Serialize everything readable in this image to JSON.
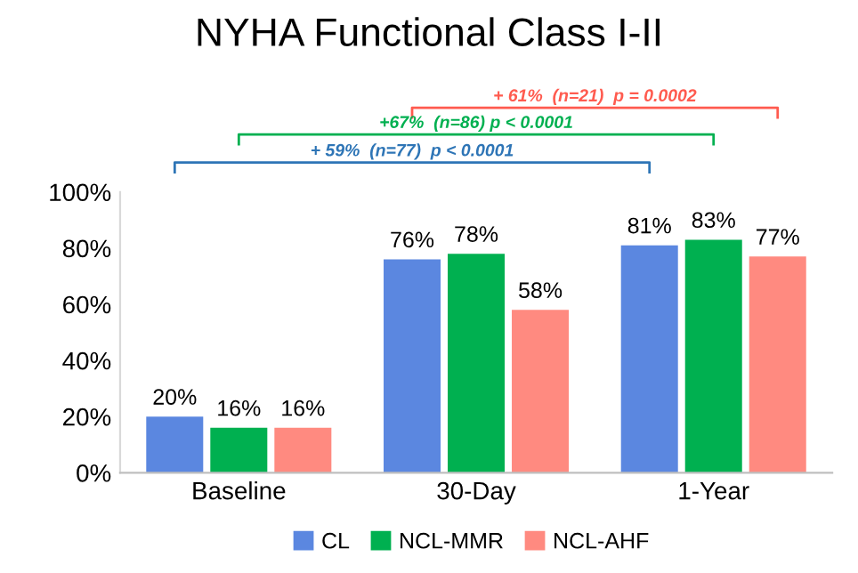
{
  "chart_data": {
    "type": "bar",
    "title": "NYHA Functional Class I-II",
    "categories": [
      "Baseline",
      "30-Day",
      "1-Year"
    ],
    "series": [
      {
        "name": "CL",
        "color": "#5b87e0",
        "values": [
          20,
          76,
          81
        ]
      },
      {
        "name": "NCL-MMR",
        "color": "#00b050",
        "values": [
          16,
          78,
          83
        ]
      },
      {
        "name": "NCL-AHF",
        "color": "#ff8a80",
        "values": [
          16,
          58,
          77
        ]
      }
    ],
    "ylim": [
      0,
      100
    ],
    "yticks": [
      {
        "value": 0,
        "label": "0%"
      },
      {
        "value": 20,
        "label": "20%"
      },
      {
        "value": 40,
        "label": "40%"
      },
      {
        "value": 60,
        "label": "60%"
      },
      {
        "value": 80,
        "label": "80%"
      },
      {
        "value": 100,
        "label": "100%"
      }
    ],
    "value_labels": [
      [
        "20%",
        "76%",
        "81%"
      ],
      [
        "16%",
        "78%",
        "83%"
      ],
      [
        "16%",
        "58%",
        "77%"
      ]
    ],
    "annotations": [
      "+ 61%  (n=21)  p = 0.0002",
      "+67%  (n=86) p < 0.0001",
      "+ 59%  (n=77)  p < 0.0001"
    ],
    "grid": false,
    "legend": "bottom"
  }
}
